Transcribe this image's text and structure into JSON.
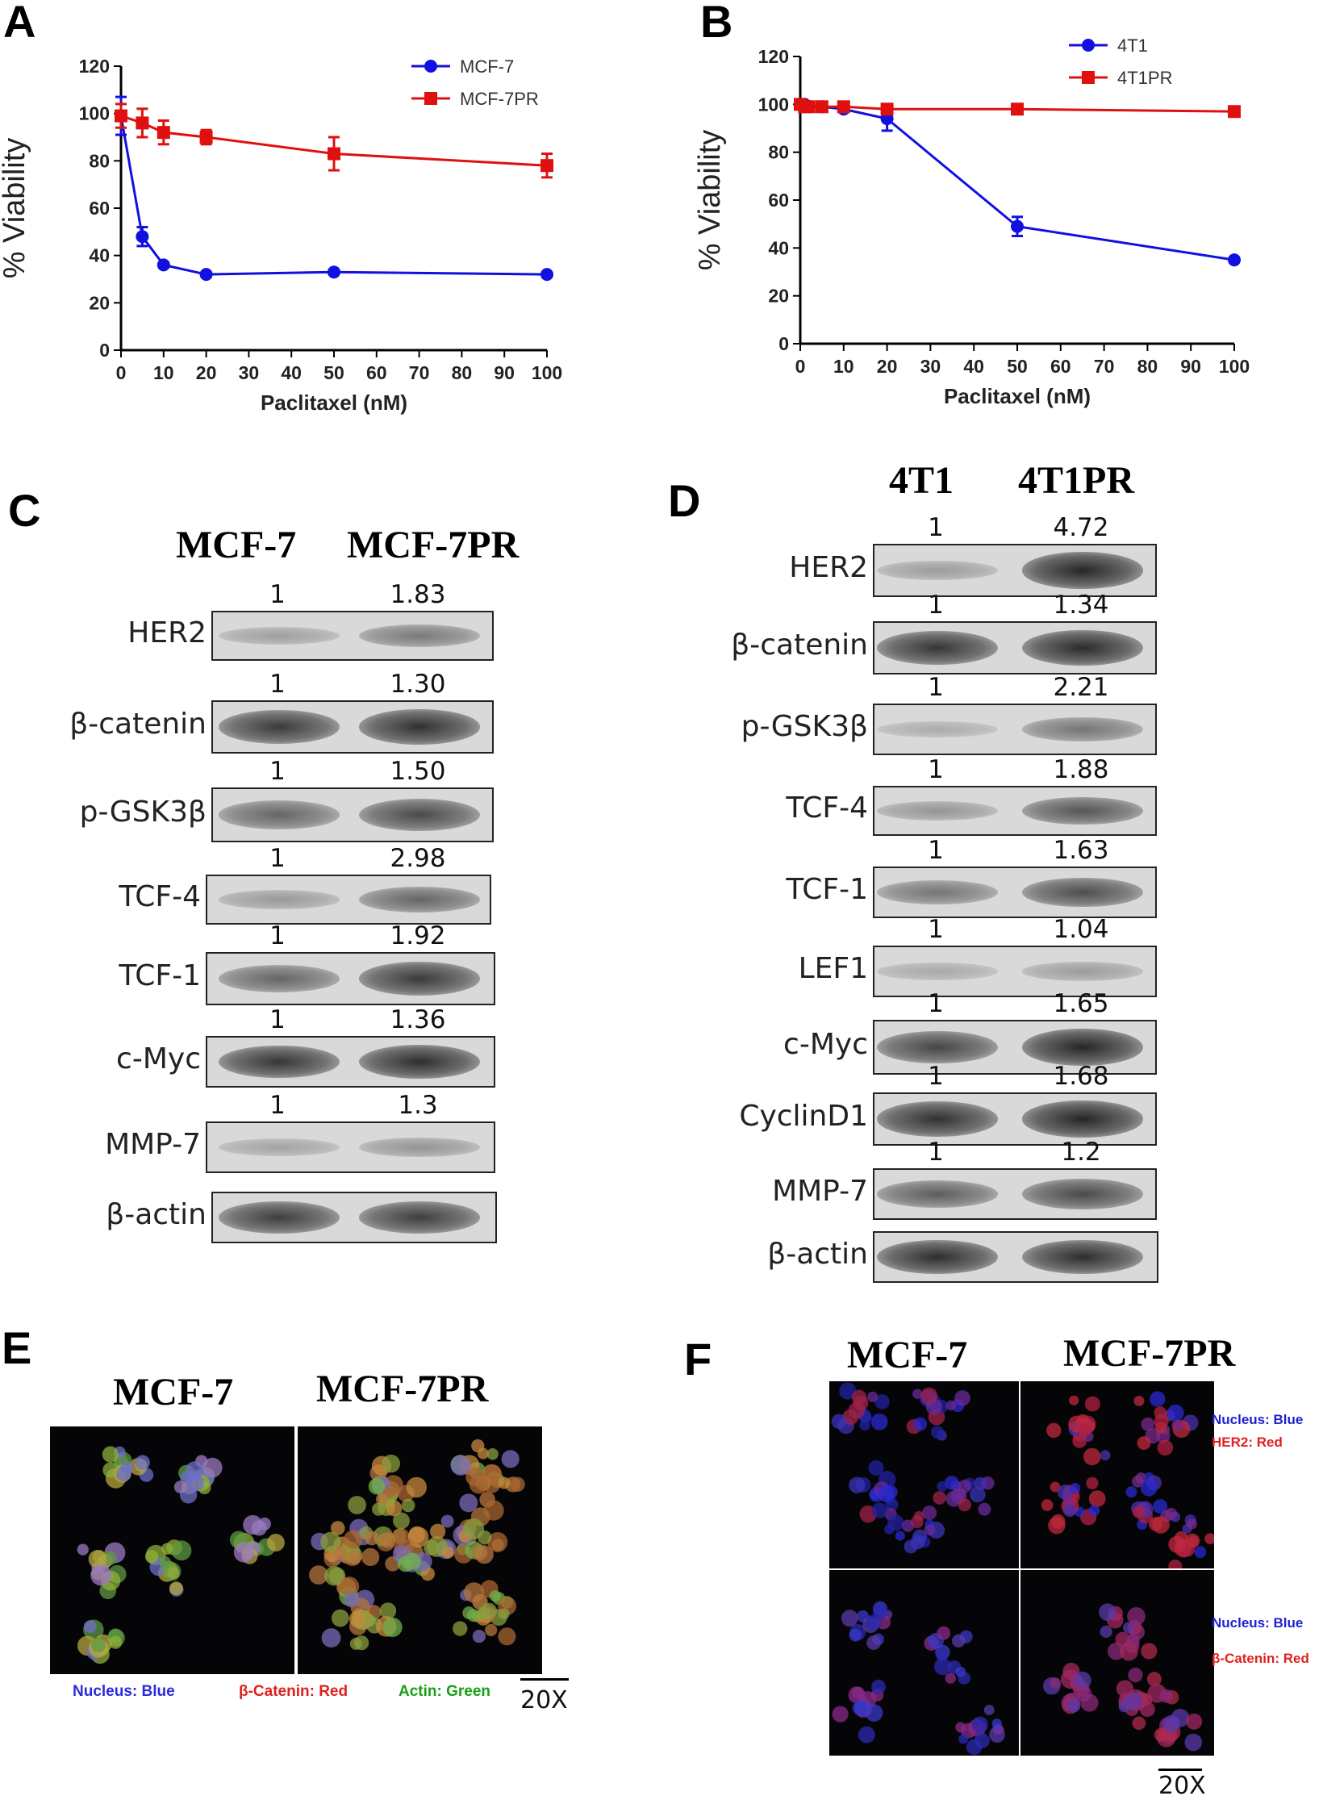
{
  "panels": {
    "a": "A",
    "b": "B",
    "c": "C",
    "d": "D",
    "e": "E",
    "f": "F"
  },
  "chart_data": [
    {
      "type": "line",
      "xlabel": "Paclitaxel (nM)",
      "ylabel": "% Viability",
      "xlim": [
        0,
        100
      ],
      "ylim": [
        0,
        120
      ],
      "xticks": [
        0,
        10,
        20,
        30,
        40,
        50,
        60,
        70,
        80,
        90,
        100
      ],
      "yticks": [
        0,
        20,
        40,
        60,
        80,
        100,
        120
      ],
      "legend": "top-right",
      "grid": false,
      "series": [
        {
          "name": "MCF-7",
          "color": "#1010e0",
          "marker": "circle",
          "x": [
            0,
            5,
            10,
            20,
            50,
            100
          ],
          "y": [
            99,
            48,
            36,
            32,
            33,
            32
          ],
          "err": [
            8,
            4,
            1,
            1,
            1,
            1
          ]
        },
        {
          "name": "MCF-7PR",
          "color": "#e01010",
          "marker": "square",
          "x": [
            0,
            5,
            10,
            20,
            50,
            100
          ],
          "y": [
            99,
            96,
            92,
            90,
            83,
            78
          ],
          "err": [
            5,
            6,
            5,
            3,
            7,
            5
          ]
        }
      ]
    },
    {
      "type": "line",
      "xlabel": "Paclitaxel (nM)",
      "ylabel": "% Viability",
      "xlim": [
        0,
        100
      ],
      "ylim": [
        0,
        120
      ],
      "xticks": [
        0,
        10,
        20,
        30,
        40,
        50,
        60,
        70,
        80,
        90,
        100
      ],
      "yticks": [
        0,
        20,
        40,
        60,
        80,
        100,
        120
      ],
      "legend": "top-right",
      "grid": false,
      "series": [
        {
          "name": "4T1",
          "color": "#1010e0",
          "marker": "circle",
          "x": [
            0,
            1,
            2,
            5,
            10,
            20,
            50,
            100
          ],
          "y": [
            100,
            100,
            99,
            99,
            98,
            94,
            49,
            35
          ],
          "err": [
            2,
            1,
            1,
            1,
            1,
            5,
            4,
            1
          ]
        },
        {
          "name": "4T1PR",
          "color": "#e01010",
          "marker": "square",
          "x": [
            0,
            1,
            2,
            5,
            10,
            20,
            50,
            100
          ],
          "y": [
            100,
            99,
            99,
            99,
            99,
            98,
            98,
            97
          ],
          "err": [
            1,
            1,
            1,
            1,
            1,
            1,
            1,
            1
          ]
        }
      ]
    }
  ],
  "blot_c": {
    "col1": "MCF-7",
    "col2": "MCF-7PR",
    "rows": [
      {
        "label": "HER2",
        "q1": "1",
        "q2": "1.83",
        "i1": 0.18,
        "i2": 0.42
      },
      {
        "label": "β-catenin",
        "q1": "1",
        "q2": "1.30",
        "i1": 0.82,
        "i2": 0.88
      },
      {
        "label": "p-GSK3β",
        "q1": "1",
        "q2": "1.50",
        "i1": 0.55,
        "i2": 0.72
      },
      {
        "label": "TCF-4",
        "q1": "1",
        "q2": "2.98",
        "i1": 0.22,
        "i2": 0.55
      },
      {
        "label": "TCF-1",
        "q1": "1",
        "q2": "1.92",
        "i1": 0.55,
        "i2": 0.82
      },
      {
        "label": "c-Myc",
        "q1": "1",
        "q2": "1.36",
        "i1": 0.85,
        "i2": 0.9
      },
      {
        "label": "MMP-7",
        "q1": "1",
        "q2": "1.3",
        "i1": 0.15,
        "i2": 0.25
      },
      {
        "label": "β-actin",
        "q1": "",
        "q2": "",
        "i1": 0.8,
        "i2": 0.8
      }
    ]
  },
  "blot_d": {
    "col1": "4T1",
    "col2": "4T1PR",
    "rows": [
      {
        "label": "HER2",
        "q1": "1",
        "q2": "4.72",
        "i1": 0.2,
        "i2": 0.95
      },
      {
        "label": "β-catenin",
        "q1": "1",
        "q2": "1.34",
        "i1": 0.85,
        "i2": 0.92
      },
      {
        "label": "p-GSK3β",
        "q1": "1",
        "q2": "2.21",
        "i1": 0.1,
        "i2": 0.45
      },
      {
        "label": "TCF-4",
        "q1": "1",
        "q2": "1.88",
        "i1": 0.25,
        "i2": 0.65
      },
      {
        "label": "TCF-1",
        "q1": "1",
        "q2": "1.63",
        "i1": 0.45,
        "i2": 0.7
      },
      {
        "label": "LEF1",
        "q1": "1",
        "q2": "1.04",
        "i1": 0.12,
        "i2": 0.2
      },
      {
        "label": "c-Myc",
        "q1": "1",
        "q2": "1.65",
        "i1": 0.75,
        "i2": 0.95
      },
      {
        "label": "CyclinD1",
        "q1": "1",
        "q2": "1.68",
        "i1": 0.88,
        "i2": 0.95
      },
      {
        "label": "MMP-7",
        "q1": "1",
        "q2": "1.2",
        "i1": 0.6,
        "i2": 0.72
      },
      {
        "label": "β-actin",
        "q1": "",
        "q2": "",
        "i1": 0.9,
        "i2": 0.9
      }
    ]
  },
  "panel_e": {
    "col1": "MCF-7",
    "col2": "MCF-7PR",
    "legend_nucleus": "Nucleus: Blue",
    "legend_catenin": "β-Catenin: Red",
    "legend_actin": "Actin: Green",
    "scale": "20X",
    "colors": {
      "nucleus": "#2a2ae0",
      "catenin": "#e02020",
      "actin": "#16a016"
    }
  },
  "panel_f": {
    "col1": "MCF-7",
    "col2": "MCF-7PR",
    "legend_nucleus_1": "Nucleus: Blue",
    "legend_her2": "HER2: Red",
    "legend_nucleus_2": "Nucleus: Blue",
    "legend_catenin": "β-Catenin: Red",
    "scale": "20X"
  }
}
